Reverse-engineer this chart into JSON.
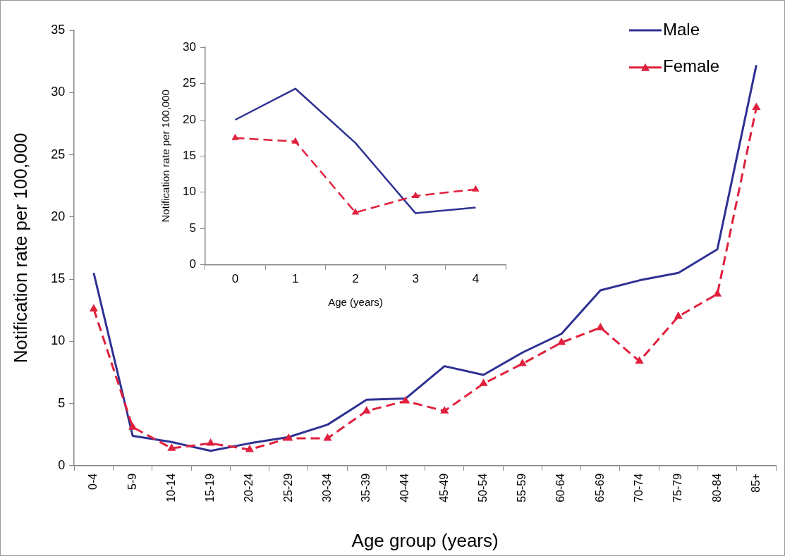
{
  "chart_data": [
    {
      "type": "line",
      "xlabel": "Age group (years)",
      "ylabel": "Notification rate per 100,000",
      "categories": [
        "0-4",
        "5-9",
        "10-14",
        "15-19",
        "20-24",
        "25-29",
        "30-34",
        "35-39",
        "40-44",
        "45-49",
        "50-54",
        "55-59",
        "60-64",
        "65-69",
        "70-74",
        "75-79",
        "80-84",
        "85+"
      ],
      "series": [
        {
          "name": "Male",
          "color": "#2e3192",
          "marker": "none",
          "line_style": "solid",
          "values": [
            15.5,
            2.4,
            1.9,
            1.2,
            1.8,
            2.3,
            3.3,
            5.3,
            5.4,
            8.0,
            7.3,
            9.1,
            10.6,
            14.1,
            14.9,
            15.5,
            17.4,
            32.2
          ]
        },
        {
          "name": "Female",
          "color": "#e0203c",
          "marker": "triangle",
          "line_style": "dashed",
          "values": [
            12.6,
            3.1,
            1.4,
            1.8,
            1.3,
            2.2,
            2.2,
            4.4,
            5.2,
            4.4,
            6.6,
            8.2,
            9.9,
            11.1,
            8.4,
            12.0,
            13.8,
            28.8
          ]
        }
      ],
      "ylim": [
        0,
        35
      ],
      "yticks": [
        0,
        5,
        10,
        15,
        20,
        25,
        30,
        35
      ],
      "grid": false,
      "legend": "top right"
    },
    {
      "type": "line",
      "xlabel": "Age (years)",
      "ylabel": "Notification rate per 100,000",
      "categories": [
        "0",
        "1",
        "2",
        "3",
        "4"
      ],
      "series": [
        {
          "color": "#2e3192",
          "marker": "none",
          "line_style": "solid",
          "values": [
            20.0,
            24.3,
            16.8,
            7.1,
            7.9
          ]
        },
        {
          "color": "#e0203c",
          "marker": "triangle",
          "line_style": "dashed",
          "values": [
            17.5,
            17.0,
            7.2,
            9.5,
            10.4
          ]
        }
      ],
      "ylim": [
        0,
        30
      ],
      "yticks": [
        0,
        5,
        10,
        15,
        20,
        25,
        30
      ],
      "grid": false,
      "legend": false
    }
  ]
}
